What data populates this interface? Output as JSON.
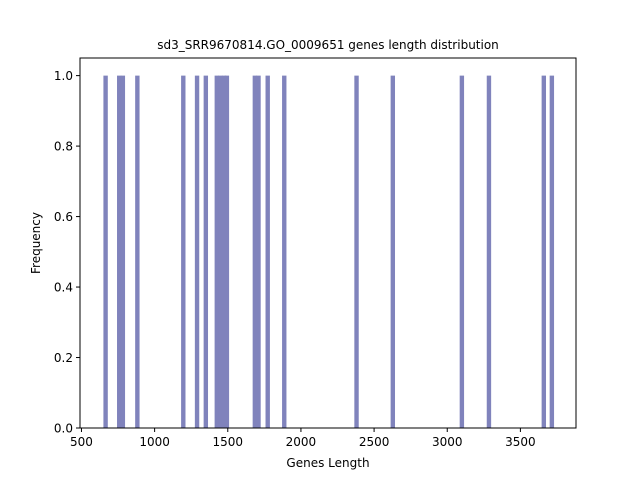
{
  "chart_data": {
    "type": "bar",
    "title": "sd3_SRR9670814.GO_0009651 genes length distribution",
    "xlabel": "Genes Length",
    "ylabel": "Frequency",
    "xlim": [
      490,
      3880
    ],
    "ylim": [
      0,
      1.05
    ],
    "x_ticks": [
      500,
      1000,
      1500,
      2000,
      2500,
      3000,
      3500
    ],
    "y_ticks": [
      0.0,
      0.2,
      0.4,
      0.6,
      0.8,
      1.0
    ],
    "bin_width": 30,
    "bar_color": "#8083bc",
    "bars": [
      {
        "x": 665,
        "value": 1.0
      },
      {
        "x": 758,
        "value": 1.0
      },
      {
        "x": 783,
        "value": 1.0
      },
      {
        "x": 882,
        "value": 1.0
      },
      {
        "x": 1196,
        "value": 1.0
      },
      {
        "x": 1290,
        "value": 1.0
      },
      {
        "x": 1350,
        "value": 1.0
      },
      {
        "x": 1425,
        "value": 1.0
      },
      {
        "x": 1450,
        "value": 1.0
      },
      {
        "x": 1475,
        "value": 1.0
      },
      {
        "x": 1494,
        "value": 1.0
      },
      {
        "x": 1685,
        "value": 1.0
      },
      {
        "x": 1710,
        "value": 1.0
      },
      {
        "x": 1773,
        "value": 1.0
      },
      {
        "x": 1886,
        "value": 1.0
      },
      {
        "x": 2380,
        "value": 1.0
      },
      {
        "x": 2628,
        "value": 1.0
      },
      {
        "x": 3100,
        "value": 1.0
      },
      {
        "x": 3285,
        "value": 1.0
      },
      {
        "x": 3660,
        "value": 1.0
      },
      {
        "x": 3715,
        "value": 1.0
      }
    ]
  }
}
